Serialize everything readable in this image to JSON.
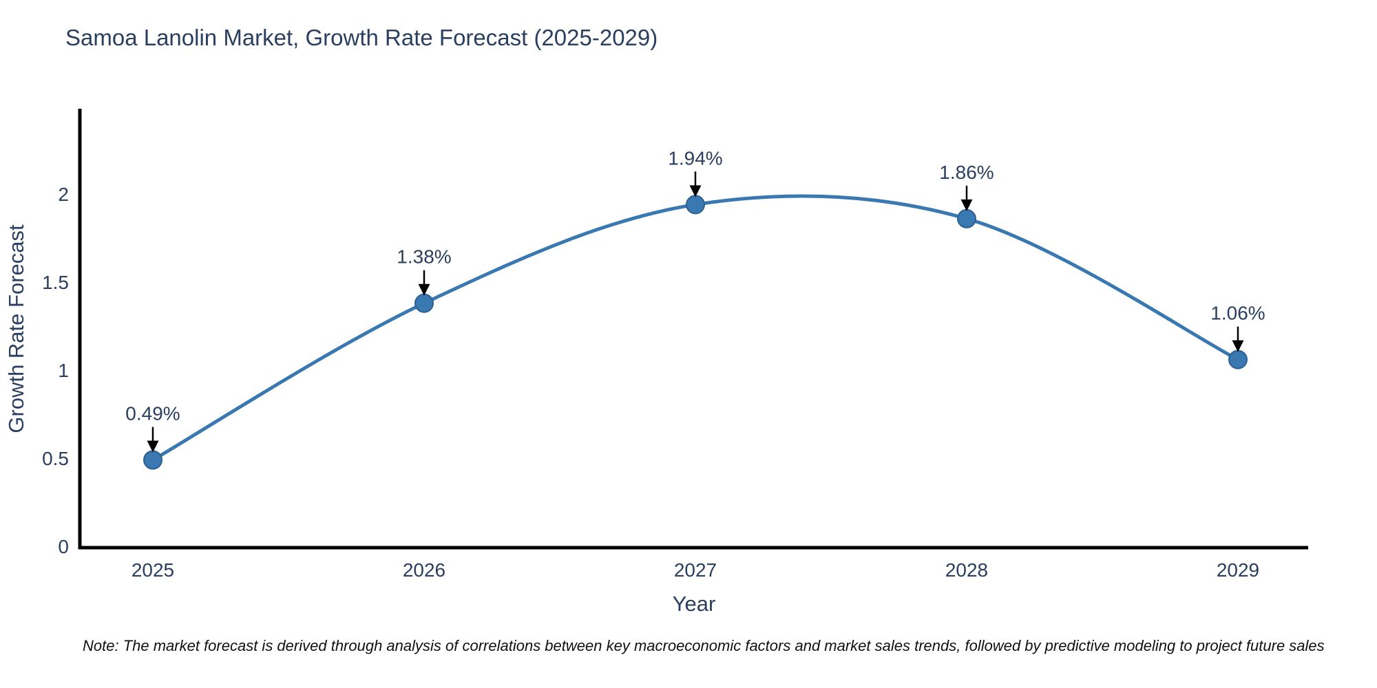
{
  "title": {
    "text": "Samoa Lanolin Market, Growth Rate Forecast (2025-2029)",
    "color": "#2a3f5f"
  },
  "note": {
    "text": "Note: The market forecast is derived through analysis of correlations between key macroeconomic factors and market sales trends, followed by predictive modeling to project future sales"
  },
  "chart_data": {
    "type": "line",
    "title": "Samoa Lanolin Market, Growth Rate Forecast (2025-2029)",
    "x": [
      2025,
      2026,
      2027,
      2028,
      2029
    ],
    "series": [
      {
        "name": "Growth Rate Forecast",
        "values": [
          0.49,
          1.38,
          1.94,
          1.86,
          1.06
        ]
      }
    ],
    "point_labels": [
      "0.49%",
      "1.38%",
      "1.94%",
      "1.86%",
      "1.06%"
    ],
    "xlabel": "Year",
    "ylabel": "Growth Rate Forecast",
    "yticks": [
      0,
      0.5,
      1,
      1.5,
      2
    ],
    "ylim": [
      0,
      2.47
    ],
    "grid": false,
    "legend_position": "none",
    "line_shape": "spline",
    "line_color": "#3a78b2",
    "marker_color": "#3a78b2",
    "marker_edge_color": "#2d5f91",
    "axis_color": "#000000",
    "text_color": "#2a3f5f",
    "annotation_arrow_color": "#000000"
  }
}
